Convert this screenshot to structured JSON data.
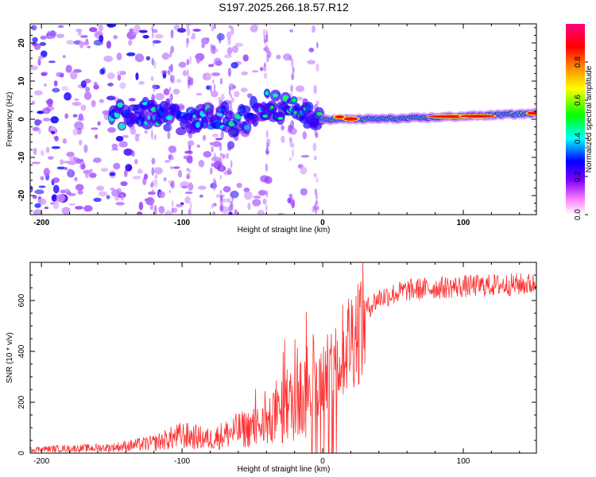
{
  "figure_title": "S197.2025.266.18.57.R12",
  "chart_data": [
    {
      "type": "heatmap",
      "title": "S197.2025.266.18.57.R12",
      "xlabel": "Height of straight line (km)",
      "ylabel": "Frequency (Hz)",
      "xlim": [
        -208,
        152
      ],
      "ylim": [
        -25,
        25
      ],
      "xticks": [
        -200,
        -100,
        0,
        100
      ],
      "xtick_labels": [
        "-200",
        "-100",
        "0",
        "100"
      ],
      "yticks": [
        20,
        10,
        0,
        -10,
        -20
      ],
      "ytick_labels": [
        "20",
        "10",
        "0",
        "-10",
        "-20"
      ],
      "colorbar": {
        "label": "Normalized spectral amplitude",
        "range": [
          0,
          1
        ],
        "ticks": [
          0.0,
          0.2,
          0.4,
          0.6,
          0.8
        ],
        "tick_labels": [
          "0.0",
          "0.2",
          "0.4",
          "0.6",
          "0.8"
        ],
        "colors": [
          "#ffffff",
          "#ff80ff",
          "#0000ff",
          "#00ffff",
          "#00ff00",
          "#ffff00",
          "#ff8000",
          "#ff0000",
          "#ff00ff"
        ]
      },
      "ridge": {
        "description": "Doppler ridge frequency (Hz) vs height (km)",
        "x": [
          -140,
          -120,
          -100,
          -80,
          -60,
          -40,
          -20,
          0,
          20,
          60,
          100,
          150
        ],
        "y": [
          1,
          2,
          -1,
          1,
          -1,
          4,
          2,
          0,
          0,
          0.2,
          0.8,
          1.5
        ]
      }
    },
    {
      "type": "line",
      "xlabel": "Height of straight line (km)",
      "ylabel": "SNR (10 * v/v)",
      "xlim": [
        -208,
        152
      ],
      "ylim": [
        0,
        750
      ],
      "xticks": [
        -200,
        -100,
        0,
        100
      ],
      "xtick_labels": [
        "-200",
        "-100",
        "0",
        "100"
      ],
      "yticks": [
        0,
        200,
        400,
        600
      ],
      "ytick_labels": [
        "0",
        "200",
        "400",
        "600"
      ],
      "series": [
        {
          "name": "SNR",
          "color": "#ff3030",
          "x": [
            -208,
            -180,
            -150,
            -120,
            -100,
            -80,
            -60,
            -40,
            -20,
            -10,
            0,
            10,
            20,
            30,
            40,
            60,
            80,
            100,
            120,
            152
          ],
          "y": [
            15,
            18,
            22,
            40,
            70,
            55,
            90,
            110,
            200,
            240,
            300,
            380,
            480,
            560,
            610,
            640,
            650,
            655,
            660,
            665
          ]
        }
      ]
    }
  ]
}
